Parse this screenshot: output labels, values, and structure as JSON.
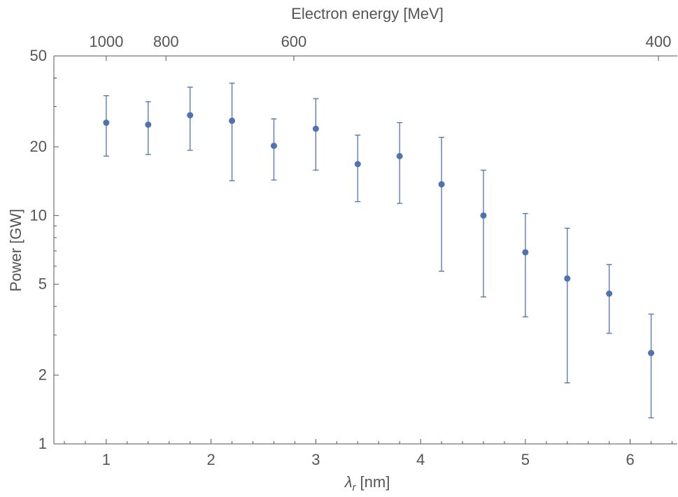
{
  "chart_data": {
    "type": "scatter",
    "xlabel": "[nm]",
    "xlabel_symbol": "λ",
    "xlabel_subscript": "r",
    "ylabel": "Power [GW]",
    "top_xlabel": "Electron energy [MeV]",
    "xlim": [
      0.5,
      6.45
    ],
    "ylim": [
      1,
      50
    ],
    "yscale": "log",
    "x_ticks": [
      1,
      2,
      3,
      4,
      5,
      6
    ],
    "y_ticks": [
      1,
      2,
      5,
      10,
      20,
      50
    ],
    "top_ticks": [
      {
        "label": "1000",
        "x": 1.0
      },
      {
        "label": "800",
        "x": 1.57
      },
      {
        "label": "600",
        "x": 2.79
      },
      {
        "label": "400",
        "x": 6.27
      }
    ],
    "grid": false,
    "color": "#4f73b0",
    "points": [
      {
        "x": 1.0,
        "y": 25.5,
        "low": 18.2,
        "high": 33.5
      },
      {
        "x": 1.4,
        "y": 25.0,
        "low": 18.5,
        "high": 31.5
      },
      {
        "x": 1.8,
        "y": 27.5,
        "low": 19.3,
        "high": 36.5
      },
      {
        "x": 2.2,
        "y": 26.0,
        "low": 14.2,
        "high": 38.0
      },
      {
        "x": 2.6,
        "y": 20.2,
        "low": 14.3,
        "high": 26.5
      },
      {
        "x": 3.0,
        "y": 24.0,
        "low": 15.8,
        "high": 32.5
      },
      {
        "x": 3.4,
        "y": 16.8,
        "low": 11.5,
        "high": 22.5
      },
      {
        "x": 3.8,
        "y": 18.2,
        "low": 11.3,
        "high": 25.5
      },
      {
        "x": 4.2,
        "y": 13.7,
        "low": 5.7,
        "high": 22.0
      },
      {
        "x": 4.6,
        "y": 10.0,
        "low": 4.4,
        "high": 15.8
      },
      {
        "x": 5.0,
        "y": 6.9,
        "low": 3.6,
        "high": 10.2
      },
      {
        "x": 5.4,
        "y": 5.3,
        "low": 1.85,
        "high": 8.8
      },
      {
        "x": 5.8,
        "y": 4.55,
        "low": 3.05,
        "high": 6.1
      },
      {
        "x": 6.2,
        "y": 2.5,
        "low": 1.3,
        "high": 3.7
      }
    ]
  }
}
